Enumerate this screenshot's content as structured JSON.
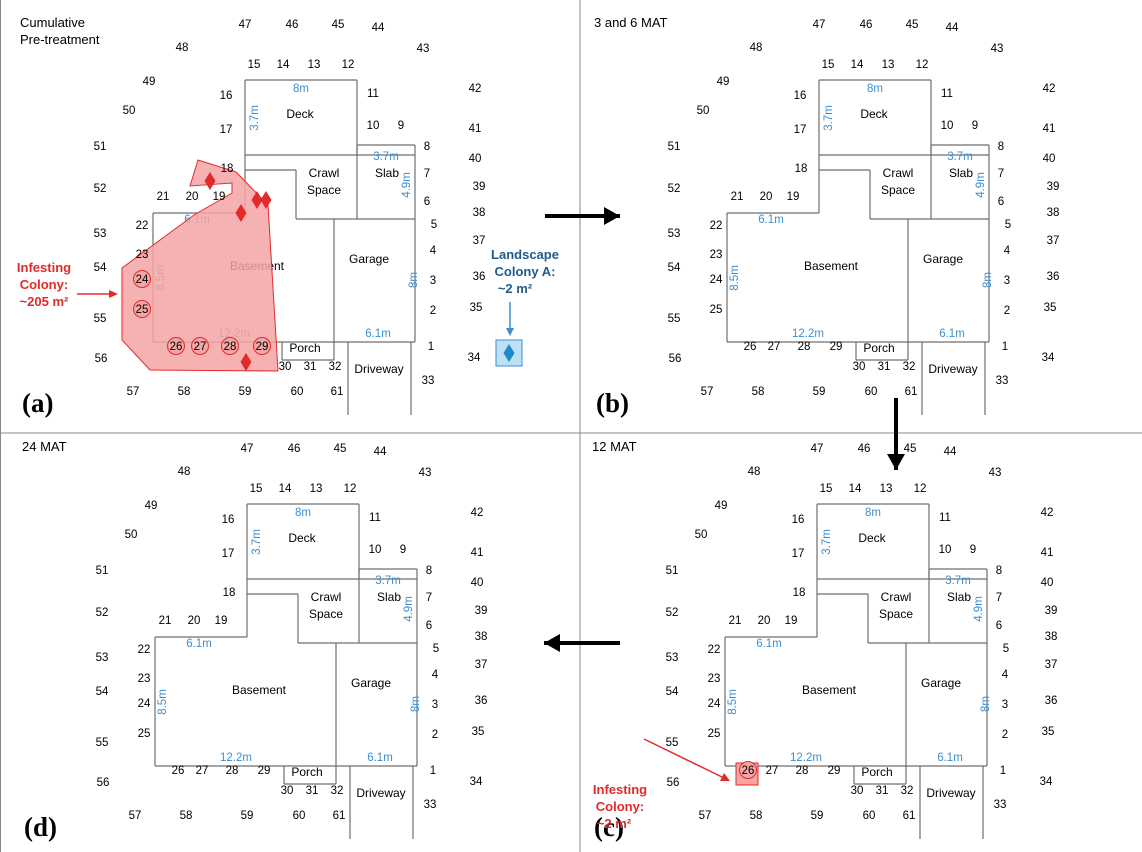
{
  "panels": [
    {
      "id": "a",
      "title": "Cumulative\nPre-treatment",
      "tag": "(a)",
      "title_lines": [
        "Cumulative",
        "Pre-treatment"
      ]
    },
    {
      "id": "b",
      "title": "3 and 6 MAT",
      "tag": "(b)",
      "title_lines": [
        "3 and 6 MAT"
      ]
    },
    {
      "id": "c",
      "title": "12 MAT",
      "tag": "(c)",
      "title_lines": [
        "12 MAT"
      ]
    },
    {
      "id": "d",
      "title": "24 MAT",
      "tag": "(d)",
      "title_lines": [
        "24 MAT"
      ]
    }
  ],
  "rooms": {
    "deck": "Deck",
    "crawl_line1": "Crawl",
    "crawl_line2": "Space",
    "slab": "Slab",
    "basement": "Basement",
    "garage": "Garage",
    "porch": "Porch",
    "driveway": "Driveway"
  },
  "dimensions": {
    "deck_width": "8m",
    "deck_height": "3.7m",
    "slab_width": "3.7m",
    "slab_height": "4.9m",
    "basement_top": "6.1m",
    "basement_side": "8.5m",
    "basement_bottom": "12.2m",
    "garage_side": "8m",
    "garage_bottom": "6.1m"
  },
  "stations": [
    "1",
    "2",
    "3",
    "4",
    "5",
    "6",
    "7",
    "8",
    "9",
    "10",
    "11",
    "12",
    "13",
    "14",
    "15",
    "16",
    "17",
    "18",
    "19",
    "20",
    "21",
    "22",
    "23",
    "24",
    "25",
    "26",
    "27",
    "28",
    "29",
    "30",
    "31",
    "32",
    "33",
    "34",
    "35",
    "36",
    "37",
    "38",
    "39",
    "40",
    "41",
    "42",
    "43",
    "44",
    "45",
    "46",
    "47",
    "48",
    "49",
    "50",
    "51",
    "52",
    "53",
    "54",
    "55",
    "56",
    "57",
    "58",
    "59",
    "60",
    "61"
  ],
  "annotations": {
    "infesting_a_line1": "Infesting",
    "infesting_a_line2": "Colony:",
    "infesting_a_line3": "~205 m²",
    "landscape_line1": "Landscape",
    "landscape_line2": "Colony A:",
    "landscape_line3": "~2 m²",
    "infesting_c_line1": "Infesting",
    "infesting_c_line2": "Colony:",
    "infesting_c_line3": "~2 m²"
  },
  "panel_a_hit_stations": [
    "24",
    "25",
    "26",
    "27",
    "28",
    "29"
  ],
  "panel_c_hit_stations": [
    "26"
  ],
  "colors": {
    "wall": "#6f6f6f",
    "dimension_blue": "#3d8fcf",
    "infest_red": "#e32a2a",
    "infest_fill": "#f4a5a5",
    "landscape_blue": "#1f5c8c",
    "landscape_fill": "#bfe0f2",
    "panel_border": "#888888",
    "arrow": "#000000"
  },
  "icons": {
    "detection_marker": "red-diamond-icon",
    "landscape_marker": "blue-diamond-icon",
    "flow_arrow": "black-arrow-icon"
  }
}
